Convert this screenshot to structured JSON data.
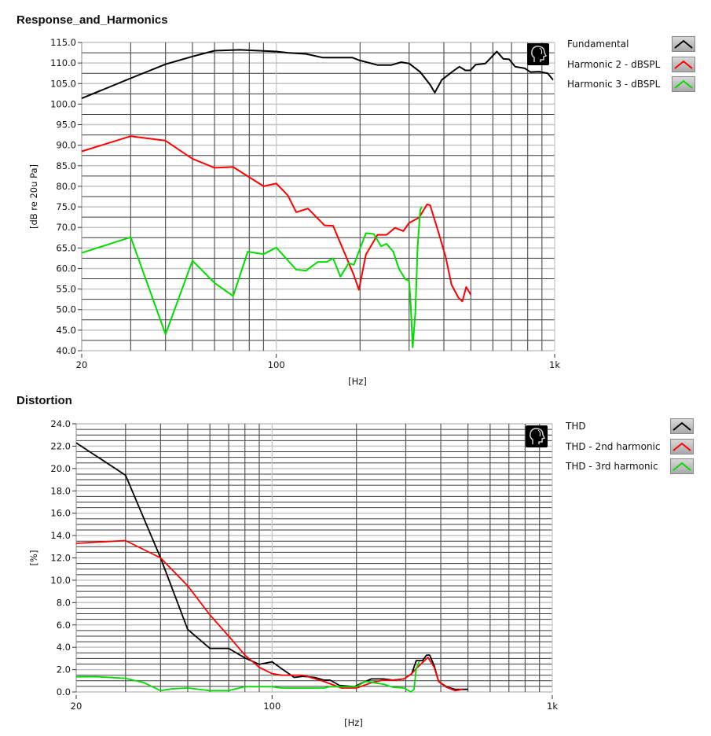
{
  "chart_data": [
    {
      "type": "line",
      "title": "Response_and_Harmonics",
      "xlabel": "[Hz]",
      "ylabel": "[dB re 20u Pa]",
      "xscale": "log",
      "xlim": [
        20,
        1000
      ],
      "ylim": [
        40,
        115
      ],
      "xticks": [
        {
          "v": 20,
          "label": "20"
        },
        {
          "v": 100,
          "label": "100"
        },
        {
          "v": 1000,
          "label": "1k"
        }
      ],
      "yticks": [
        "40.0",
        "45.0",
        "50.0",
        "55.0",
        "60.0",
        "65.0",
        "70.0",
        "75.0",
        "80.0",
        "85.0",
        "90.0",
        "95.0",
        "100.0",
        "105.0",
        "110.0",
        "115.0"
      ],
      "ytick_step": 5,
      "grid": true,
      "legend_position": "right",
      "series": [
        {
          "name": "Fundamental",
          "color": "#000000",
          "x": [
            20,
            30,
            40,
            50,
            60,
            74,
            100,
            110,
            128,
            147,
            156,
            188,
            198,
            231,
            259,
            281,
            300,
            329,
            357,
            371,
            393,
            433,
            455,
            478,
            498,
            520,
            564,
            620,
            654,
            686,
            721,
            781,
            818,
            881,
            944,
            987
          ],
          "y": [
            101.4,
            106.3,
            109.7,
            111.6,
            113.0,
            113.2,
            112.8,
            112.5,
            112.2,
            111.3,
            111.3,
            111.3,
            110.7,
            109.5,
            109.5,
            110.2,
            109.9,
            107.8,
            104.7,
            102.8,
            105.9,
            108.1,
            109.1,
            108.2,
            108.2,
            109.6,
            109.9,
            112.8,
            111.0,
            110.9,
            109.1,
            108.7,
            107.8,
            107.9,
            107.5,
            105.9
          ]
        },
        {
          "name": "Harmonic 2 - dBSPL",
          "color": "#ff0000",
          "x": [
            20,
            30,
            40,
            50,
            60,
            70,
            90,
            100,
            110,
            118,
            130,
            149,
            160,
            190,
            198,
            210,
            231,
            249,
            267,
            286,
            300,
            326,
            348,
            357,
            381,
            406,
            426,
            451,
            466,
            481,
            500
          ],
          "y": [
            88.5,
            92.2,
            91.1,
            86.7,
            84.5,
            84.7,
            80.0,
            80.7,
            77.8,
            73.7,
            74.6,
            70.5,
            70.4,
            58.4,
            54.8,
            63.4,
            68.2,
            68.2,
            69.9,
            69.1,
            71.1,
            72.4,
            75.6,
            75.4,
            69.2,
            62.8,
            56.1,
            52.9,
            52.0,
            55.5,
            53.6
          ]
        },
        {
          "name": "Harmonic 3 - dBSPL",
          "color": "#00dd00",
          "x": [
            20,
            30,
            40,
            50,
            60,
            70,
            79,
            90,
            100,
            118,
            128,
            141,
            152,
            160,
            170,
            182,
            190,
            210,
            224,
            238,
            249,
            263,
            276,
            291,
            300,
            303,
            309,
            316,
            322,
            329,
            333
          ],
          "y": [
            63.8,
            67.6,
            44.0,
            61.9,
            56.5,
            53.3,
            64.1,
            63.5,
            65.1,
            59.7,
            59.5,
            61.6,
            61.6,
            62.5,
            58.0,
            61.3,
            60.9,
            68.6,
            68.4,
            65.4,
            66.0,
            64.1,
            59.9,
            57.4,
            57.0,
            52.9,
            40.8,
            49.4,
            65.4,
            74.3,
            75.0
          ]
        }
      ]
    },
    {
      "type": "line",
      "title": "Distortion",
      "xlabel": "[Hz]",
      "ylabel": "[%]",
      "xscale": "log",
      "xlim": [
        20,
        1000
      ],
      "ylim": [
        0,
        24
      ],
      "xticks": [
        {
          "v": 20,
          "label": "20"
        },
        {
          "v": 100,
          "label": "100"
        },
        {
          "v": 1000,
          "label": "1k"
        }
      ],
      "yticks": [
        "0.0",
        "2.0",
        "4.0",
        "6.0",
        "8.0",
        "10.0",
        "12.0",
        "14.0",
        "16.0",
        "18.0",
        "20.0",
        "22.0",
        "24.0"
      ],
      "ytick_step": 2,
      "grid": true,
      "legend_position": "right",
      "series": [
        {
          "name": "THD",
          "color": "#000000",
          "x": [
            20,
            30,
            40,
            50,
            60,
            70,
            80,
            90,
            100,
            108,
            120,
            129,
            142,
            153,
            161,
            174,
            197,
            210,
            226,
            250,
            270,
            296,
            315,
            327,
            344,
            356,
            365,
            379,
            393,
            419,
            450,
            500
          ],
          "y": [
            22.3,
            19.4,
            12.0,
            5.6,
            3.9,
            3.9,
            3.05,
            2.47,
            2.7,
            2.1,
            1.3,
            1.4,
            1.3,
            1.06,
            1.06,
            0.59,
            0.47,
            0.82,
            1.17,
            1.17,
            1.06,
            1.17,
            1.64,
            2.8,
            2.8,
            3.3,
            3.3,
            2.35,
            0.94,
            0.47,
            0.23,
            0.23
          ]
        },
        {
          "name": "THD - 2nd harmonic",
          "color": "#ff0000",
          "x": [
            20,
            30,
            40,
            50,
            60,
            70,
            80,
            90,
            100,
            108,
            129,
            153,
            177,
            200,
            226,
            249,
            270,
            296,
            315,
            327,
            360,
            379,
            393,
            419,
            450,
            480
          ],
          "y": [
            13.3,
            13.55,
            12.0,
            9.5,
            6.9,
            5.0,
            3.3,
            2.2,
            1.64,
            1.5,
            1.5,
            0.94,
            0.35,
            0.35,
            0.82,
            1.06,
            1.06,
            1.17,
            1.64,
            2.1,
            3.1,
            2.2,
            0.94,
            0.42,
            0.12,
            0.23
          ]
        },
        {
          "name": "THD - 3rd harmonic",
          "color": "#00dd00",
          "x": [
            20,
            24,
            30,
            35,
            40,
            44,
            50,
            60,
            70,
            80,
            100,
            108,
            153,
            161,
            200,
            215,
            232,
            250,
            270,
            296,
            313,
            321,
            327,
            335
          ],
          "y": [
            1.36,
            1.36,
            1.22,
            0.82,
            0.12,
            0.28,
            0.35,
            0.12,
            0.12,
            0.47,
            0.47,
            0.35,
            0.35,
            0.47,
            0.47,
            0.94,
            0.82,
            0.7,
            0.42,
            0.35,
            0.0,
            0.23,
            2.1,
            2.7
          ]
        }
      ]
    }
  ],
  "icons": {
    "graph_palette": "head-silhouette-icon"
  }
}
